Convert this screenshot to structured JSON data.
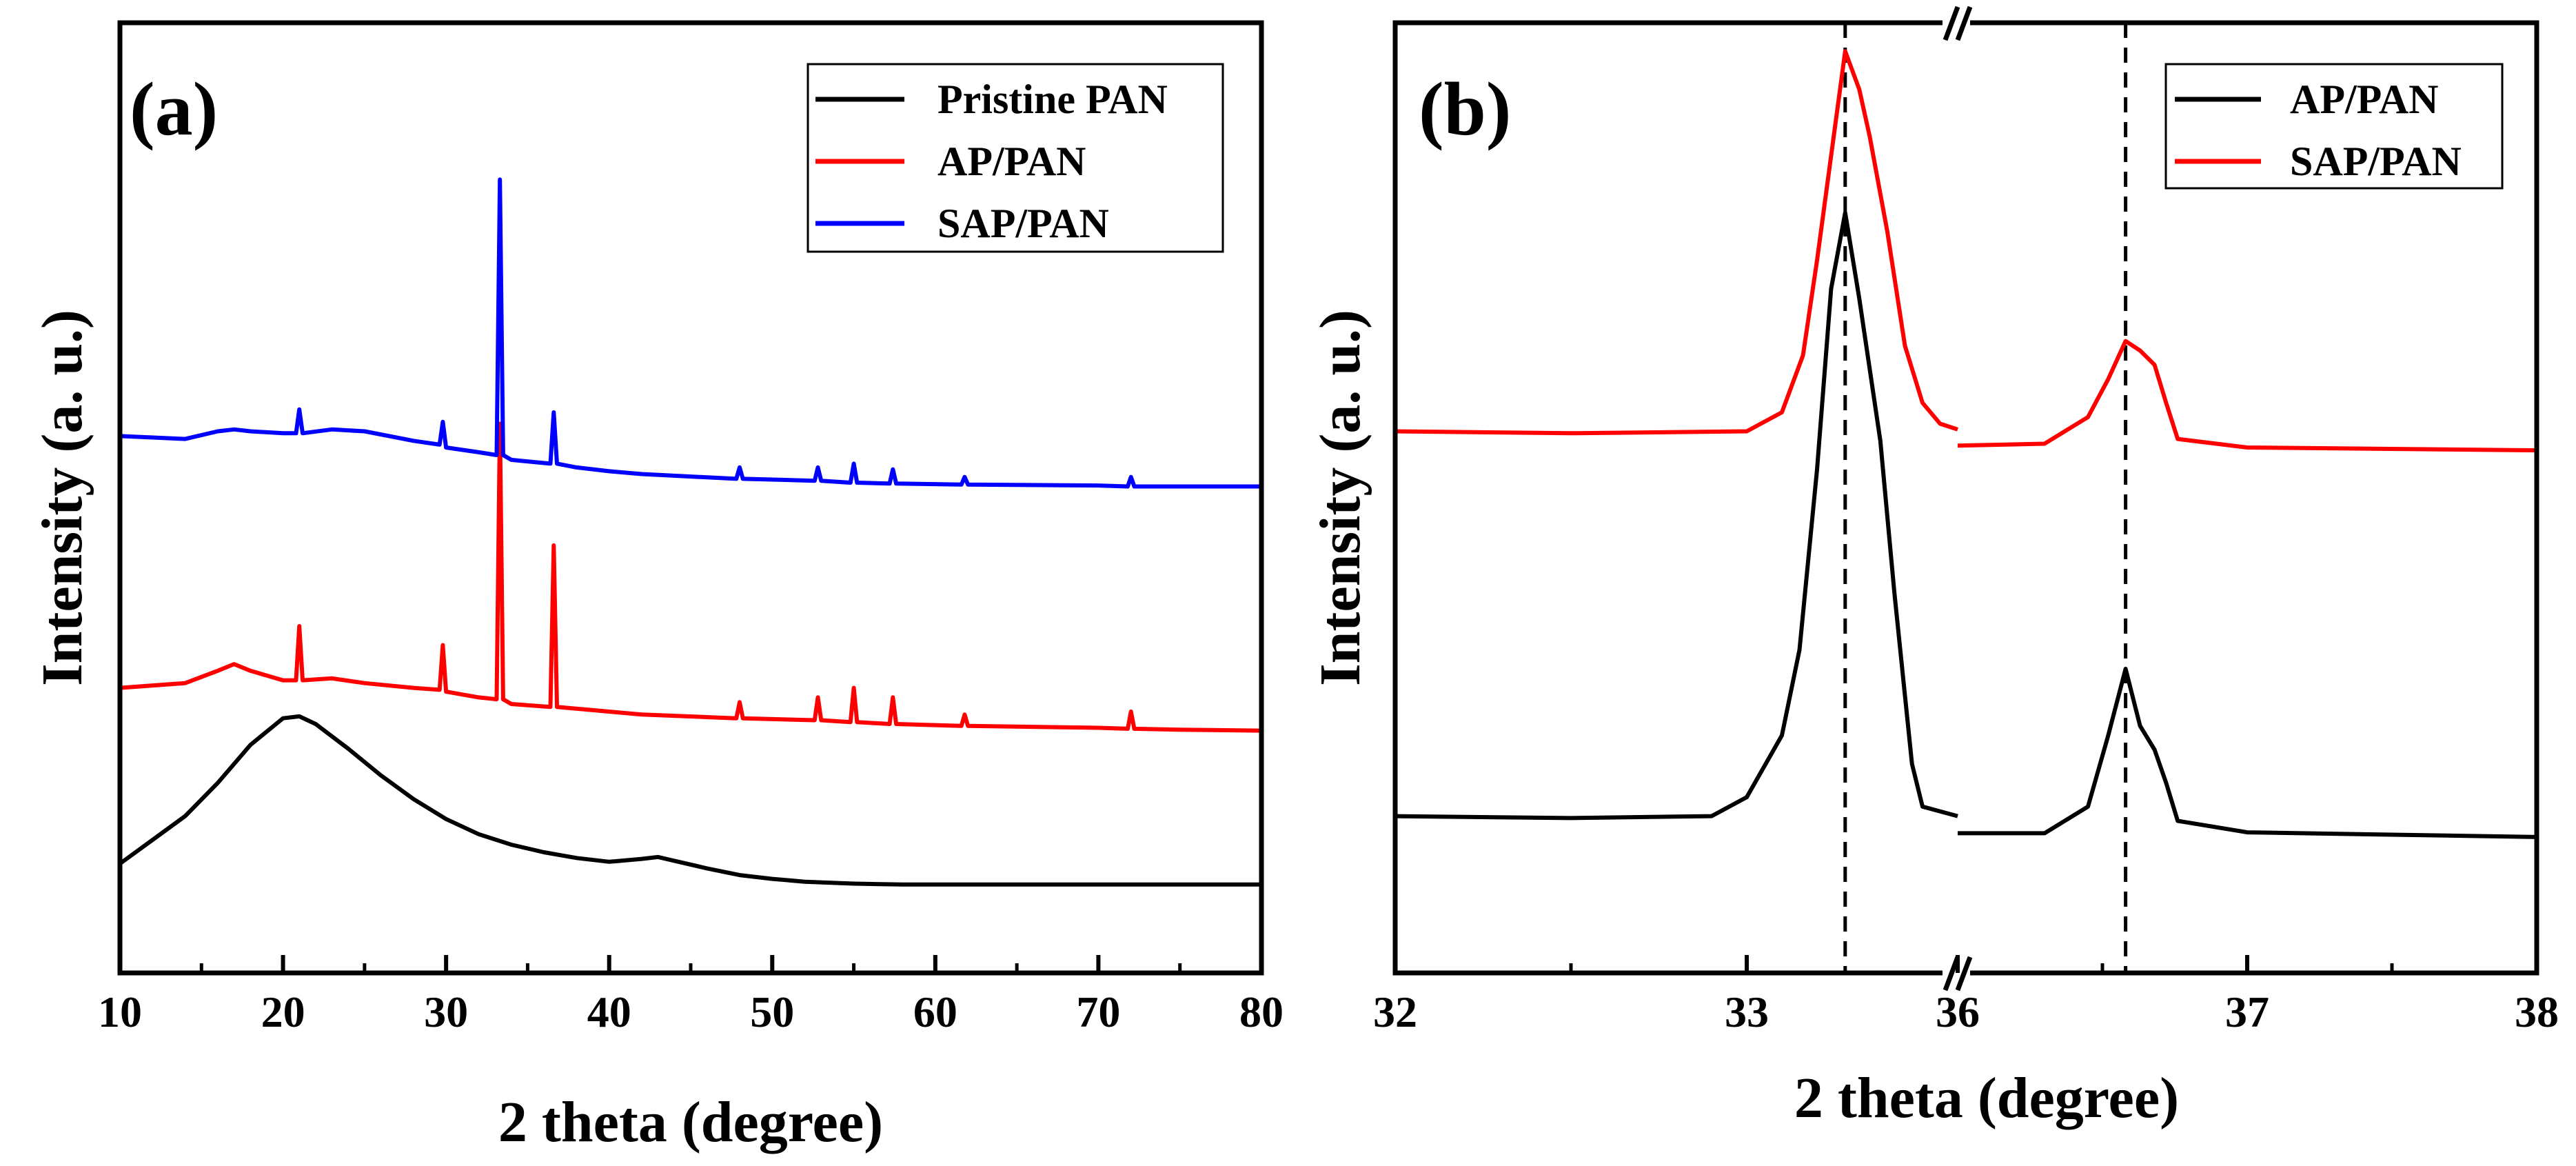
{
  "chart_data": [
    {
      "panel": "(a)",
      "type": "line",
      "xlabel": "2 theta (degree)",
      "ylabel": "Intensity (a. u.)",
      "xlim": [
        10,
        80
      ],
      "ylim": [
        0,
        1
      ],
      "xticks": [
        10,
        20,
        30,
        40,
        50,
        60,
        70,
        80
      ],
      "yticks": [],
      "legend_position": "top-right",
      "series": [
        {
          "name": "Pristine PAN",
          "color": "#000000",
          "x": [
            10,
            12,
            14,
            16,
            18,
            20,
            21,
            22,
            24,
            26,
            28,
            30,
            32,
            34,
            36,
            38,
            40,
            42,
            43,
            44,
            46,
            48,
            50,
            52,
            55,
            58,
            60,
            65,
            70,
            75,
            80
          ],
          "y": [
            0.115,
            0.14,
            0.165,
            0.2,
            0.24,
            0.268,
            0.27,
            0.262,
            0.236,
            0.208,
            0.183,
            0.162,
            0.146,
            0.135,
            0.127,
            0.121,
            0.117,
            0.12,
            0.122,
            0.118,
            0.11,
            0.103,
            0.099,
            0.096,
            0.094,
            0.093,
            0.093,
            0.093,
            0.093,
            0.093,
            0.093
          ]
        },
        {
          "name": "AP/PAN",
          "color": "#ff0000",
          "x": [
            10,
            14,
            16,
            17,
            18,
            20,
            20.8,
            21,
            21.2,
            23,
            25,
            28,
            29.6,
            29.8,
            30,
            32,
            33.1,
            33.3,
            33.5,
            34,
            36.4,
            36.6,
            36.8,
            40,
            42,
            47.8,
            48,
            48.2,
            52.6,
            52.8,
            53,
            54.8,
            55,
            55.2,
            57.2,
            57.4,
            57.6,
            61.6,
            61.8,
            62,
            70,
            71.8,
            72,
            72.2,
            75,
            80
          ],
          "y": [
            0.3,
            0.305,
            0.318,
            0.325,
            0.318,
            0.308,
            0.308,
            0.365,
            0.308,
            0.31,
            0.305,
            0.3,
            0.298,
            0.345,
            0.296,
            0.29,
            0.288,
            0.578,
            0.288,
            0.283,
            0.28,
            0.45,
            0.28,
            0.275,
            0.272,
            0.268,
            0.285,
            0.268,
            0.266,
            0.29,
            0.266,
            0.264,
            0.3,
            0.264,
            0.262,
            0.29,
            0.262,
            0.26,
            0.272,
            0.26,
            0.258,
            0.257,
            0.275,
            0.257,
            0.256,
            0.255
          ]
        },
        {
          "name": "SAP/PAN",
          "color": "#0000ff",
          "x": [
            10,
            14,
            16,
            17,
            18,
            20,
            20.8,
            21,
            21.2,
            23,
            25,
            28,
            29.6,
            29.8,
            30,
            32,
            33.1,
            33.3,
            33.5,
            34,
            36.4,
            36.6,
            36.8,
            38,
            40,
            42,
            47.8,
            48,
            48.2,
            52.6,
            52.8,
            53,
            54.8,
            55,
            55.2,
            57.2,
            57.4,
            57.6,
            61.6,
            61.8,
            62,
            70,
            71.8,
            72,
            72.2,
            75,
            80
          ],
          "y": [
            0.565,
            0.562,
            0.57,
            0.572,
            0.57,
            0.568,
            0.568,
            0.593,
            0.568,
            0.572,
            0.57,
            0.56,
            0.556,
            0.58,
            0.553,
            0.548,
            0.545,
            0.835,
            0.545,
            0.54,
            0.536,
            0.59,
            0.536,
            0.532,
            0.528,
            0.525,
            0.52,
            0.532,
            0.52,
            0.518,
            0.532,
            0.518,
            0.516,
            0.536,
            0.516,
            0.515,
            0.53,
            0.515,
            0.514,
            0.522,
            0.514,
            0.513,
            0.512,
            0.522,
            0.512,
            0.512,
            0.512
          ]
        }
      ]
    },
    {
      "panel": "(b)",
      "type": "line",
      "xlabel": "2 theta (degree)",
      "ylabel": "Intensity (a. u.)",
      "axis_break": true,
      "xlim_left": [
        32,
        33.6
      ],
      "xlim_right": [
        36,
        38
      ],
      "ylim": [
        0,
        1
      ],
      "xticks": [
        32,
        33,
        36,
        37,
        38
      ],
      "yticks": [],
      "reference_lines": [
        33.28,
        36.58
      ],
      "legend_position": "top-right",
      "series": [
        {
          "name": "AP/PAN",
          "color": "#000000",
          "x": [
            32,
            32.5,
            32.9,
            33.0,
            33.1,
            33.15,
            33.2,
            33.24,
            33.28,
            33.32,
            33.36,
            33.38,
            33.42,
            33.47,
            33.5,
            33.6,
            36.0,
            36.3,
            36.45,
            36.52,
            36.58,
            36.63,
            36.68,
            36.72,
            36.76,
            37.0,
            38.0
          ],
          "y": [
            0.165,
            0.163,
            0.165,
            0.185,
            0.25,
            0.34,
            0.53,
            0.72,
            0.8,
            0.71,
            0.61,
            0.56,
            0.4,
            0.22,
            0.175,
            0.165,
            0.147,
            0.147,
            0.175,
            0.25,
            0.32,
            0.26,
            0.235,
            0.2,
            0.16,
            0.148,
            0.143
          ]
        },
        {
          "name": "SAP/PAN",
          "color": "#ff0000",
          "x": [
            32,
            32.5,
            33.0,
            33.1,
            33.16,
            33.2,
            33.24,
            33.28,
            33.32,
            33.35,
            33.4,
            33.45,
            33.5,
            33.55,
            33.6,
            36.0,
            36.3,
            36.45,
            36.52,
            36.58,
            36.63,
            36.68,
            36.72,
            36.76,
            37.0,
            38.0
          ],
          "y": [
            0.57,
            0.568,
            0.57,
            0.59,
            0.65,
            0.75,
            0.86,
            0.97,
            0.93,
            0.88,
            0.78,
            0.66,
            0.6,
            0.578,
            0.572,
            0.555,
            0.557,
            0.585,
            0.625,
            0.665,
            0.655,
            0.64,
            0.6,
            0.562,
            0.553,
            0.55
          ]
        }
      ]
    }
  ]
}
